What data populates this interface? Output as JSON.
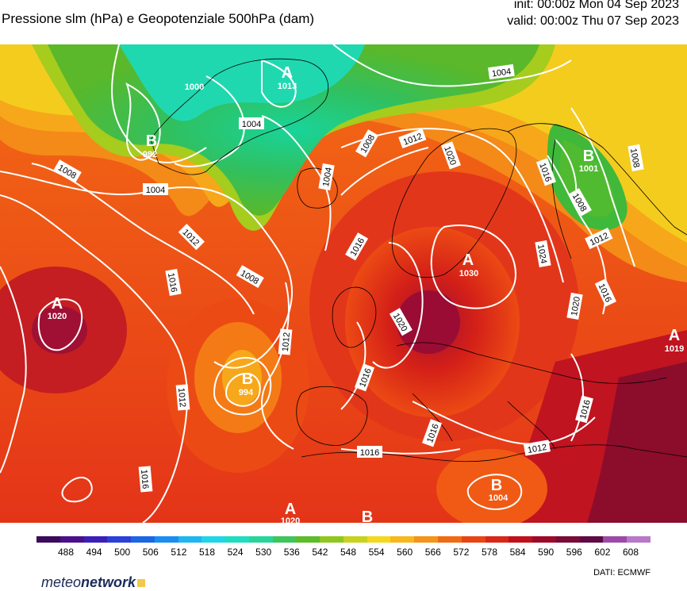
{
  "header": {
    "title": "Pressione slm (hPa) e Geopotenziale 500hPa (dam)",
    "init": "init: 00:00z Mon 04 Sep 2023",
    "valid": "valid: 00:00z Thu 07 Sep 2023"
  },
  "colorbar": {
    "ticks": [
      "488",
      "494",
      "500",
      "506",
      "512",
      "518",
      "524",
      "530",
      "536",
      "542",
      "548",
      "554",
      "560",
      "566",
      "572",
      "578",
      "584",
      "590",
      "596",
      "602",
      "608"
    ],
    "colors": [
      "#3b0a5a",
      "#4b0f8a",
      "#3a1fb8",
      "#2a40d8",
      "#1c66e6",
      "#1a8ef0",
      "#1eb6f0",
      "#22d4e4",
      "#20dcc0",
      "#28d49a",
      "#40c45c",
      "#5cbc2a",
      "#8ec81e",
      "#c6d21e",
      "#f2d81e",
      "#f6b81c",
      "#f49418",
      "#f06a14",
      "#e84414",
      "#d82818",
      "#c0101c",
      "#9c0a28",
      "#7a0a36",
      "#5e0a44",
      "#9c4aa8",
      "#b878c8"
    ]
  },
  "map": {
    "highs_lows": [
      {
        "letter": "A",
        "value": "1013"
      },
      {
        "letter": "B",
        "value": "982"
      },
      {
        "letter": "B",
        "value": "1001"
      },
      {
        "letter": "A",
        "value": "1030"
      },
      {
        "letter": "A",
        "value": "1020"
      },
      {
        "letter": "B",
        "value": "994"
      },
      {
        "letter": "B",
        "value": "1004"
      },
      {
        "letter": "A",
        "value": "1019"
      },
      {
        "letter": "A",
        "value": "1020"
      },
      {
        "letter": "B",
        "value": ""
      },
      {
        "letter": "B",
        "value": "1000"
      }
    ],
    "isobar_labels": [
      "1004",
      "1004",
      "1004",
      "1004",
      "1008",
      "1008",
      "1008",
      "1008",
      "1008",
      "1012",
      "1012",
      "1012",
      "1012",
      "1012",
      "1012",
      "1016",
      "1016",
      "1016",
      "1016",
      "1016",
      "1016",
      "1016",
      "1016",
      "1020",
      "1020",
      "1020",
      "1024",
      "1016"
    ]
  },
  "footer": {
    "brand_light": "meteo",
    "brand_bold": "network",
    "source": "DATI:  ECMWF"
  }
}
